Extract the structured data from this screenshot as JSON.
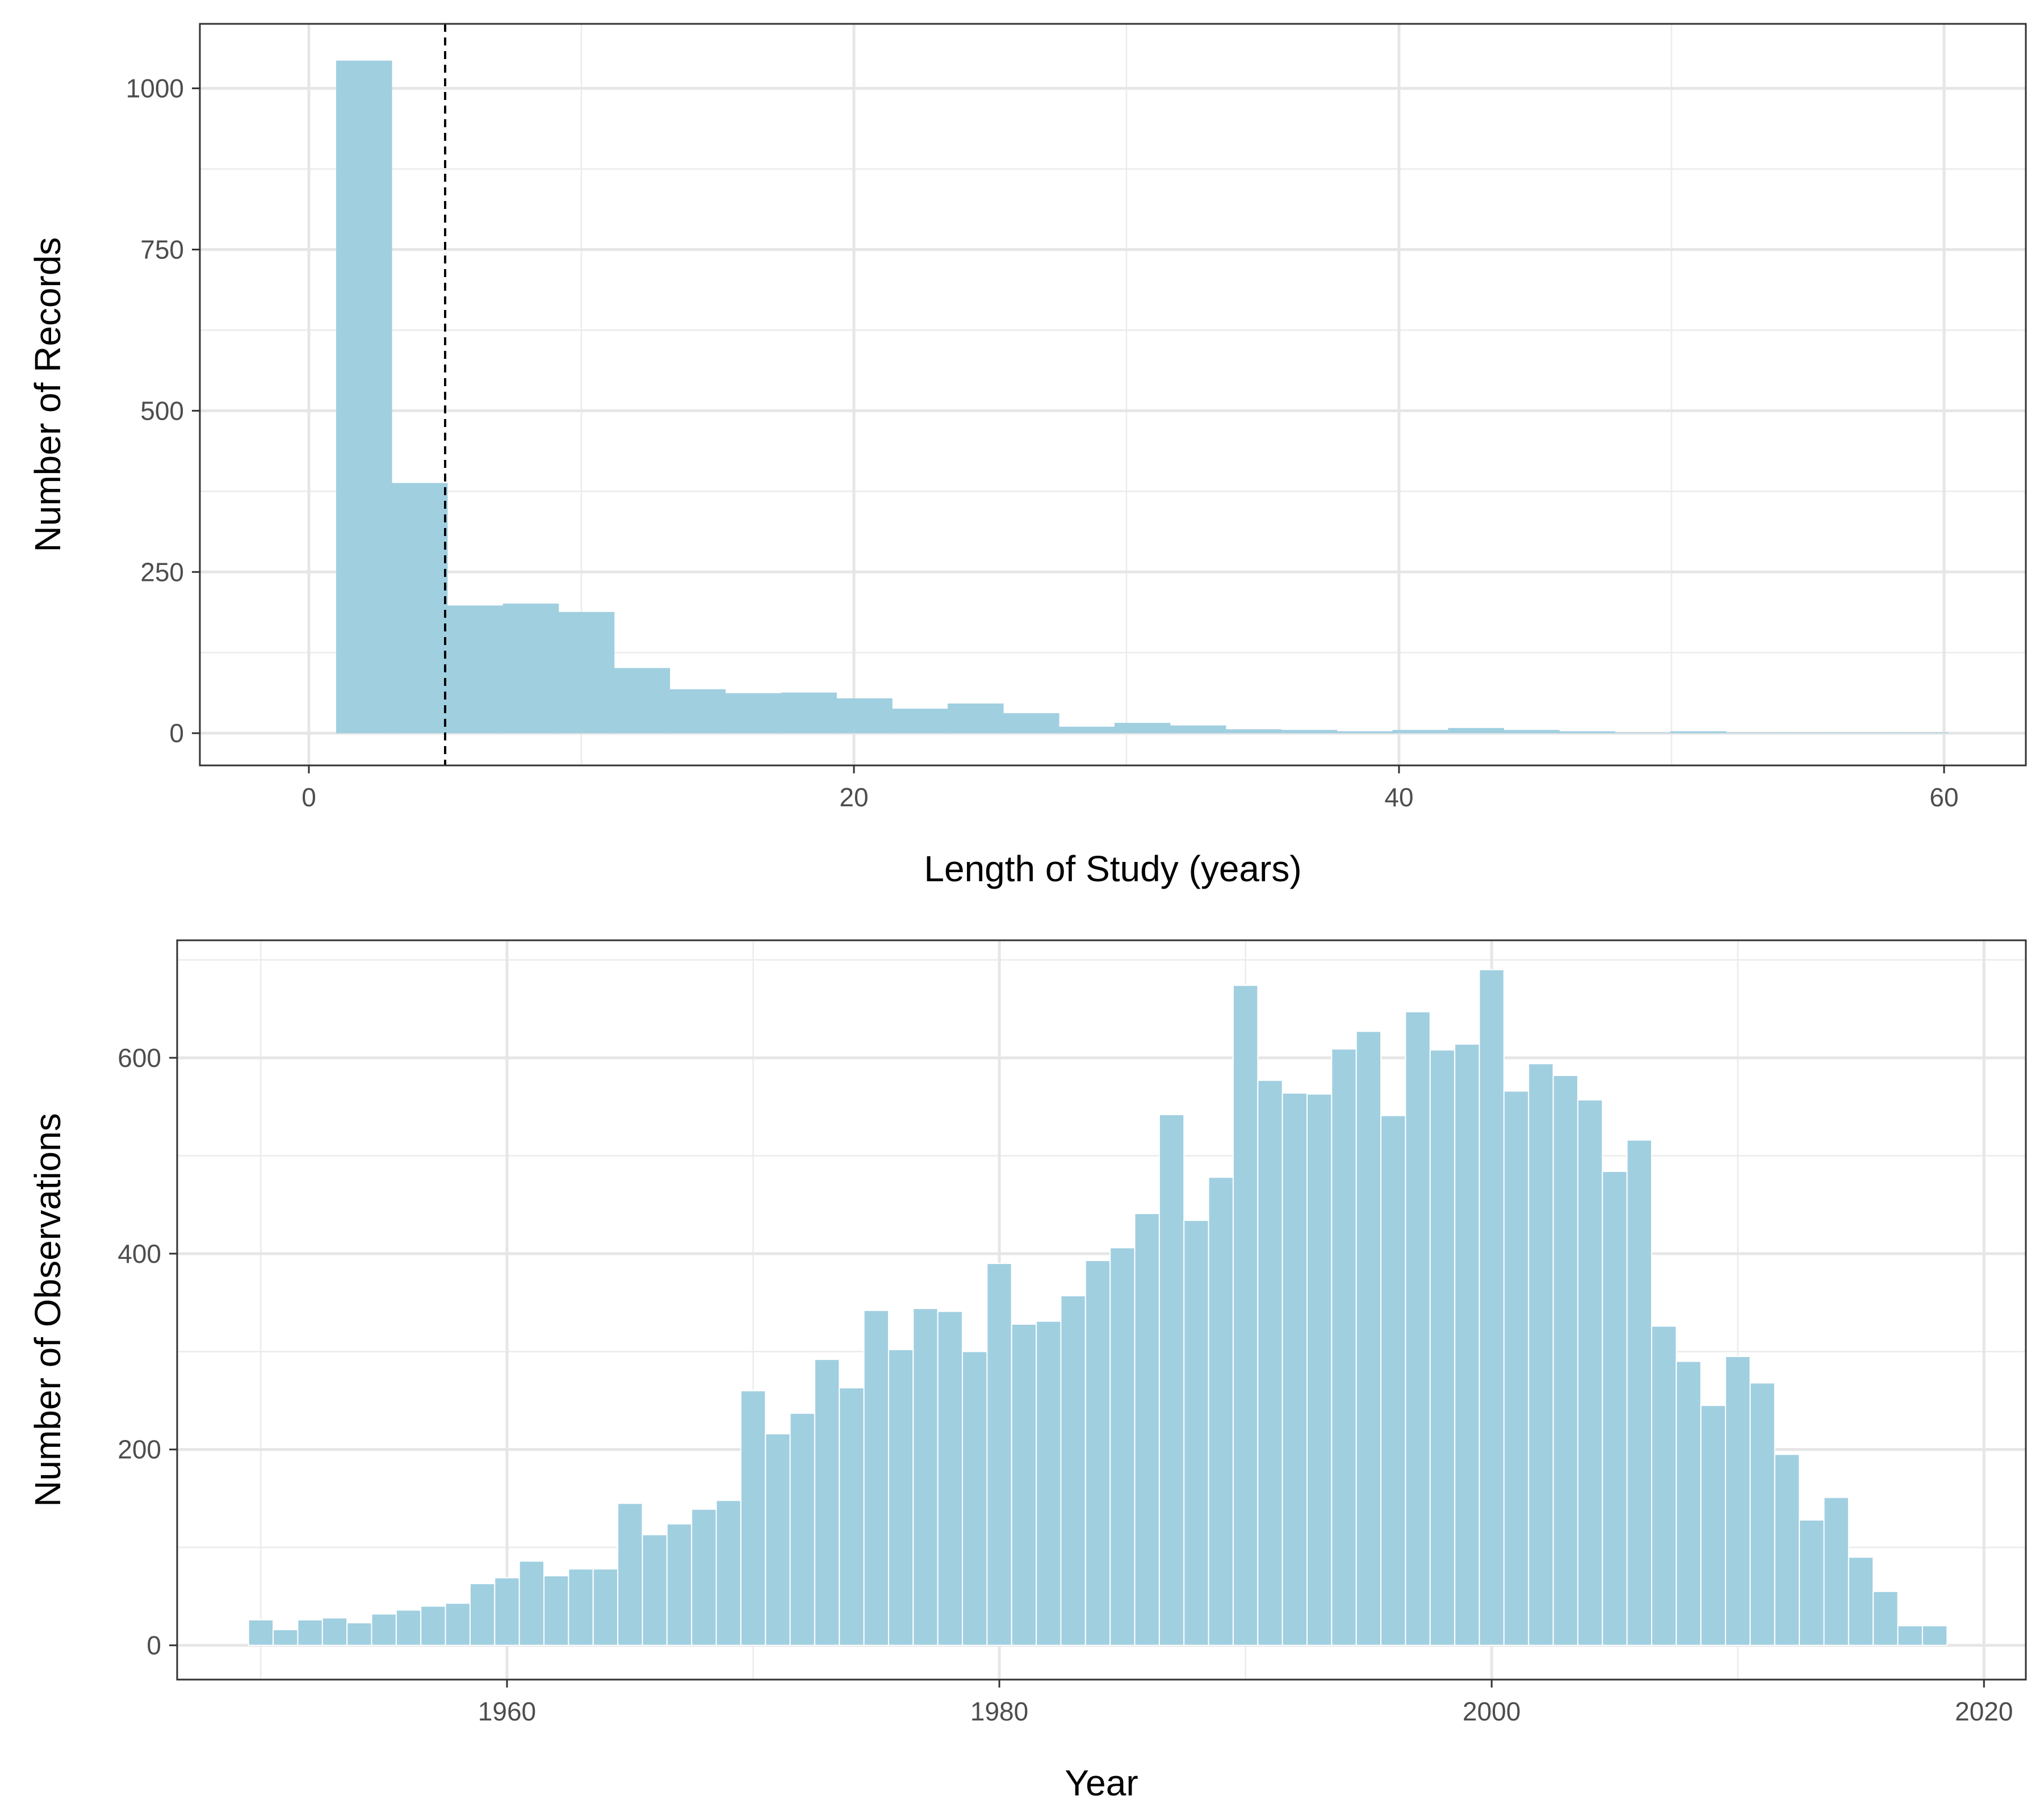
{
  "colors": {
    "bar_fill": "#a0cfe0",
    "gridline": "#e6e6e6",
    "panel_border": "#333333",
    "reference_line": "#000000"
  },
  "chart_data": [
    {
      "type": "bar",
      "subtype": "histogram",
      "xlabel": "Length of Study (years)",
      "ylabel": "Number of Records",
      "xlim": [
        -4,
        63
      ],
      "ylim": [
        -50,
        1100
      ],
      "x_ticks": [
        0,
        20,
        40,
        60
      ],
      "y_ticks": [
        0,
        250,
        500,
        750,
        1000
      ],
      "grid": true,
      "reference_line": {
        "orientation": "vertical",
        "x": 5,
        "style": "dashed"
      },
      "bin_width": 2.04,
      "bins": [
        {
          "x_start": 1.0,
          "x_end": 3.04,
          "count": 1043
        },
        {
          "x_start": 3.04,
          "x_end": 5.08,
          "count": 388
        },
        {
          "x_start": 5.08,
          "x_end": 7.12,
          "count": 198
        },
        {
          "x_start": 7.12,
          "x_end": 9.16,
          "count": 201
        },
        {
          "x_start": 9.16,
          "x_end": 11.2,
          "count": 188
        },
        {
          "x_start": 11.2,
          "x_end": 13.24,
          "count": 101
        },
        {
          "x_start": 13.24,
          "x_end": 15.28,
          "count": 68
        },
        {
          "x_start": 15.28,
          "x_end": 17.32,
          "count": 62
        },
        {
          "x_start": 17.32,
          "x_end": 19.36,
          "count": 63
        },
        {
          "x_start": 19.36,
          "x_end": 21.4,
          "count": 54
        },
        {
          "x_start": 21.4,
          "x_end": 23.44,
          "count": 38
        },
        {
          "x_start": 23.44,
          "x_end": 25.48,
          "count": 46
        },
        {
          "x_start": 25.48,
          "x_end": 27.52,
          "count": 31
        },
        {
          "x_start": 27.52,
          "x_end": 29.56,
          "count": 10
        },
        {
          "x_start": 29.56,
          "x_end": 31.6,
          "count": 16
        },
        {
          "x_start": 31.6,
          "x_end": 33.64,
          "count": 12
        },
        {
          "x_start": 33.64,
          "x_end": 35.68,
          "count": 6
        },
        {
          "x_start": 35.68,
          "x_end": 37.72,
          "count": 5
        },
        {
          "x_start": 37.72,
          "x_end": 39.76,
          "count": 3
        },
        {
          "x_start": 39.76,
          "x_end": 41.8,
          "count": 5
        },
        {
          "x_start": 41.8,
          "x_end": 43.84,
          "count": 8
        },
        {
          "x_start": 43.84,
          "x_end": 45.88,
          "count": 5
        },
        {
          "x_start": 45.88,
          "x_end": 47.92,
          "count": 3
        },
        {
          "x_start": 47.92,
          "x_end": 49.96,
          "count": 1
        },
        {
          "x_start": 49.96,
          "x_end": 52.0,
          "count": 3
        },
        {
          "x_start": 52.0,
          "x_end": 54.04,
          "count": 1
        },
        {
          "x_start": 54.04,
          "x_end": 56.08,
          "count": 1
        },
        {
          "x_start": 56.08,
          "x_end": 58.12,
          "count": 1
        },
        {
          "x_start": 58.12,
          "x_end": 60.16,
          "count": 1
        }
      ]
    },
    {
      "type": "bar",
      "xlabel": "Year",
      "ylabel": "Number of Observations",
      "xlim": [
        1946.6,
        2021.7
      ],
      "ylim": [
        -35,
        720
      ],
      "x_ticks": [
        1960,
        1980,
        2000,
        2020
      ],
      "y_ticks": [
        0,
        200,
        400,
        600
      ],
      "grid": true,
      "x": [
        1950,
        1951,
        1952,
        1953,
        1954,
        1955,
        1956,
        1957,
        1958,
        1959,
        1960,
        1961,
        1962,
        1963,
        1964,
        1965,
        1966,
        1967,
        1968,
        1969,
        1970,
        1971,
        1972,
        1973,
        1974,
        1975,
        1976,
        1977,
        1978,
        1979,
        1980,
        1981,
        1982,
        1983,
        1984,
        1985,
        1986,
        1987,
        1988,
        1989,
        1990,
        1991,
        1992,
        1993,
        1994,
        1995,
        1996,
        1997,
        1998,
        1999,
        2000,
        2001,
        2002,
        2003,
        2004,
        2005,
        2006,
        2007,
        2008,
        2009,
        2010,
        2011,
        2012,
        2013,
        2014,
        2015,
        2016,
        2017,
        2018
      ],
      "values": [
        26,
        16,
        26,
        28,
        23,
        32,
        36,
        40,
        43,
        63,
        69,
        86,
        71,
        78,
        78,
        145,
        113,
        124,
        139,
        148,
        260,
        216,
        237,
        292,
        263,
        342,
        302,
        344,
        341,
        300,
        390,
        328,
        331,
        357,
        393,
        406,
        441,
        542,
        434,
        478,
        674,
        577,
        564,
        563,
        609,
        627,
        541,
        647,
        608,
        614,
        690,
        566,
        594,
        582,
        557,
        484,
        516,
        326,
        290,
        245,
        295,
        268,
        195,
        128,
        151,
        90,
        55,
        20,
        20
      ]
    }
  ]
}
